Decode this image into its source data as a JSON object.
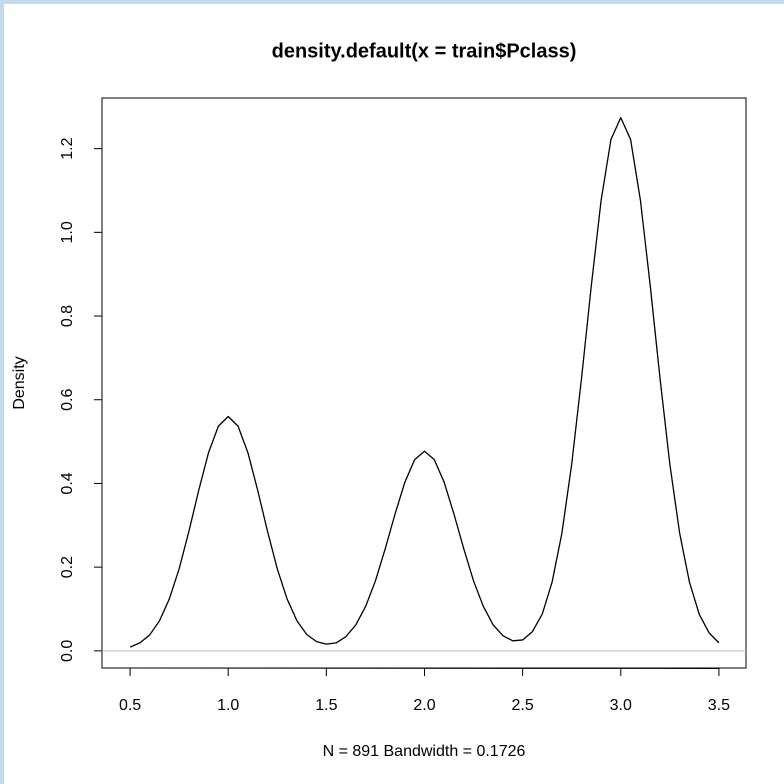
{
  "chart_data": {
    "type": "line",
    "title": "density.default(x = train$Pclass)",
    "x_label": "N = 891   Bandwidth = 0.1726",
    "y_label": "Density",
    "x": [
      0.5,
      0.55,
      0.6,
      0.65,
      0.7,
      0.75,
      0.8,
      0.85,
      0.9,
      0.95,
      1.0,
      1.05,
      1.1,
      1.15,
      1.2,
      1.25,
      1.3,
      1.35,
      1.4,
      1.45,
      1.5,
      1.55,
      1.6,
      1.65,
      1.7,
      1.75,
      1.8,
      1.85,
      1.9,
      1.95,
      2.0,
      2.05,
      2.1,
      2.15,
      2.2,
      2.25,
      2.3,
      2.35,
      2.4,
      2.45,
      2.5,
      2.55,
      2.6,
      2.65,
      2.7,
      2.75,
      2.8,
      2.85,
      2.9,
      2.95,
      3.0,
      3.05,
      3.1,
      3.15,
      3.2,
      3.25,
      3.3,
      3.35,
      3.4,
      3.45,
      3.5
    ],
    "values": [
      0.009,
      0.019,
      0.038,
      0.072,
      0.124,
      0.196,
      0.286,
      0.384,
      0.474,
      0.537,
      0.56,
      0.537,
      0.474,
      0.384,
      0.286,
      0.196,
      0.124,
      0.072,
      0.039,
      0.022,
      0.016,
      0.019,
      0.034,
      0.062,
      0.106,
      0.167,
      0.244,
      0.327,
      0.403,
      0.457,
      0.477,
      0.457,
      0.403,
      0.327,
      0.244,
      0.167,
      0.106,
      0.062,
      0.036,
      0.024,
      0.026,
      0.046,
      0.088,
      0.164,
      0.281,
      0.446,
      0.651,
      0.873,
      1.077,
      1.222,
      1.274,
      1.222,
      1.077,
      0.873,
      0.651,
      0.446,
      0.281,
      0.164,
      0.087,
      0.043,
      0.019
    ],
    "color": "#000000",
    "zero_line_color": "#bebebe",
    "xlim": [
      0.357,
      3.638
    ],
    "ylim": [
      -0.041,
      1.321
    ],
    "xticks": [
      0.5,
      {
        "value": 1,
        "label": "1.0"
      },
      1.5,
      {
        "value": 2,
        "label": "2.0"
      },
      2.5,
      {
        "value": 3,
        "label": "3.0"
      },
      3.5
    ],
    "yticks": [
      {
        "value": 0,
        "label": "0.0"
      },
      0.2,
      0.4,
      0.6,
      0.8,
      {
        "value": 1,
        "label": "1.0"
      },
      1.2
    ]
  }
}
